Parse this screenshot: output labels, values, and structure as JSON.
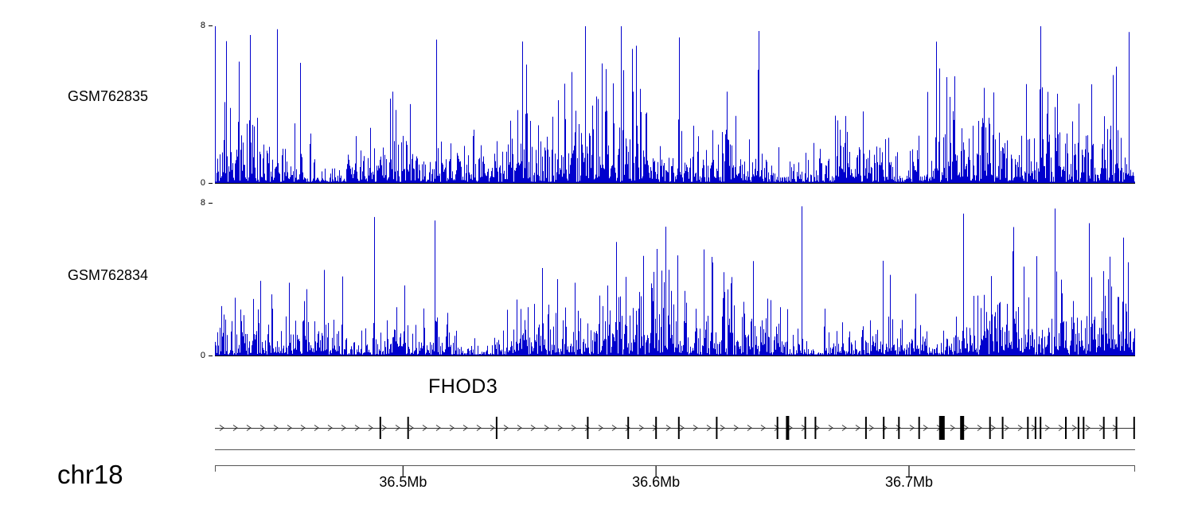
{
  "figure": {
    "kind": "genome-browser-coverage-figure",
    "background": "#ffffff"
  },
  "chart_data": {
    "type": "area",
    "description": "Two read-coverage signal tracks (dense per-base vertical bars, values 0-8) over the FHOD3 locus on chr18, with a gene model track (right-pointing strand arrows, exon ticks) and a Mb-scale ruler below",
    "region": {
      "chrom": "chr18",
      "start_mb": 36.425,
      "end_mb": 36.79
    },
    "ylim": [
      0,
      8
    ],
    "signal_color": "#0000CD",
    "tracks": [
      {
        "name": "GSM762835",
        "ymax_label": "8",
        "ymin_label": "0",
        "seed": 762835,
        "mean": 1.55,
        "edge_spike": true
      },
      {
        "name": "GSM762834",
        "ymax_label": "8",
        "ymin_label": "0",
        "seed": 762834,
        "mean": 1.35,
        "edge_spike": false
      }
    ],
    "gene": {
      "name": "FHOD3",
      "strand": "+",
      "exons": [
        [
          36.491,
          2
        ],
        [
          36.502,
          2
        ],
        [
          36.537,
          2
        ],
        [
          36.573,
          2
        ],
        [
          36.589,
          2
        ],
        [
          36.6,
          2
        ],
        [
          36.609,
          2
        ],
        [
          36.624,
          2
        ],
        [
          36.648,
          2
        ],
        [
          36.652,
          4
        ],
        [
          36.659,
          2
        ],
        [
          36.663,
          2
        ],
        [
          36.683,
          2
        ],
        [
          36.69,
          2
        ],
        [
          36.696,
          2
        ],
        [
          36.704,
          2
        ],
        [
          36.713,
          7
        ],
        [
          36.721,
          5
        ],
        [
          36.732,
          2
        ],
        [
          36.737,
          2
        ],
        [
          36.747,
          2
        ],
        [
          36.75,
          2
        ],
        [
          36.752,
          2
        ],
        [
          36.762,
          2
        ],
        [
          36.767,
          2
        ],
        [
          36.769,
          2
        ],
        [
          36.777,
          2
        ],
        [
          36.782,
          2
        ],
        [
          36.789,
          2
        ]
      ]
    },
    "axis": {
      "ticks": [
        {
          "label": "36.5Mb",
          "mb": 36.5
        },
        {
          "label": "36.6Mb",
          "mb": 36.6
        },
        {
          "label": "36.7Mb",
          "mb": 36.7
        }
      ]
    }
  }
}
